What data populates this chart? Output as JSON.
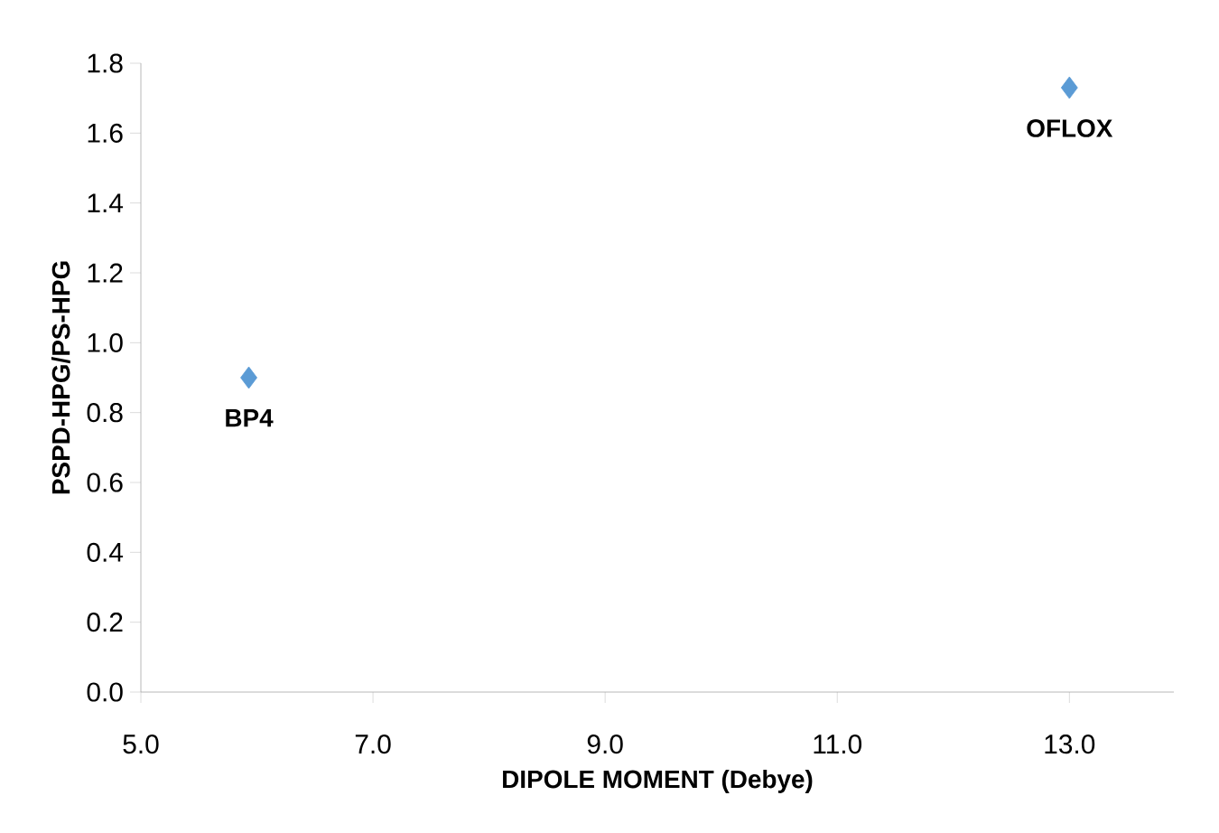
{
  "chart_data": {
    "type": "scatter",
    "xlabel": "DIPOLE MOMENT (Debye)",
    "ylabel": "PSPD-HPG/PS-HPG",
    "x": [
      5.93,
      13.0
    ],
    "series": [
      {
        "color": "#5b9bd5",
        "values": [
          0.9,
          1.73
        ]
      }
    ],
    "marker": "diamond",
    "xlim": [
      5.0,
      13.9
    ],
    "xticks": [
      {
        "value": 5,
        "label": "5.0"
      },
      {
        "value": 7,
        "label": "7.0"
      },
      {
        "value": 9,
        "label": "9.0"
      },
      {
        "value": 11,
        "label": "11.0"
      },
      {
        "value": 13,
        "label": "13.0"
      }
    ],
    "ylim": [
      0,
      1.8
    ],
    "yticks": [
      {
        "value": 0,
        "label": "0.0"
      },
      {
        "value": 0.2,
        "label": "0.2"
      },
      {
        "value": 0.4,
        "label": "0.4"
      },
      {
        "value": 0.6,
        "label": "0.6"
      },
      {
        "value": 0.8,
        "label": "0.8"
      },
      {
        "value": 1.0,
        "label": "1.0"
      },
      {
        "value": 1.2,
        "label": "1.2"
      },
      {
        "value": 1.4,
        "label": "1.4"
      },
      {
        "value": 1.6,
        "label": "1.6"
      },
      {
        "value": 1.8,
        "label": "1.8"
      }
    ],
    "annotations": [
      {
        "text": "BP4",
        "x": 5.93,
        "y": 0.9
      },
      {
        "text": "OFLOX",
        "x": 13.0,
        "y": 1.73
      }
    ]
  }
}
